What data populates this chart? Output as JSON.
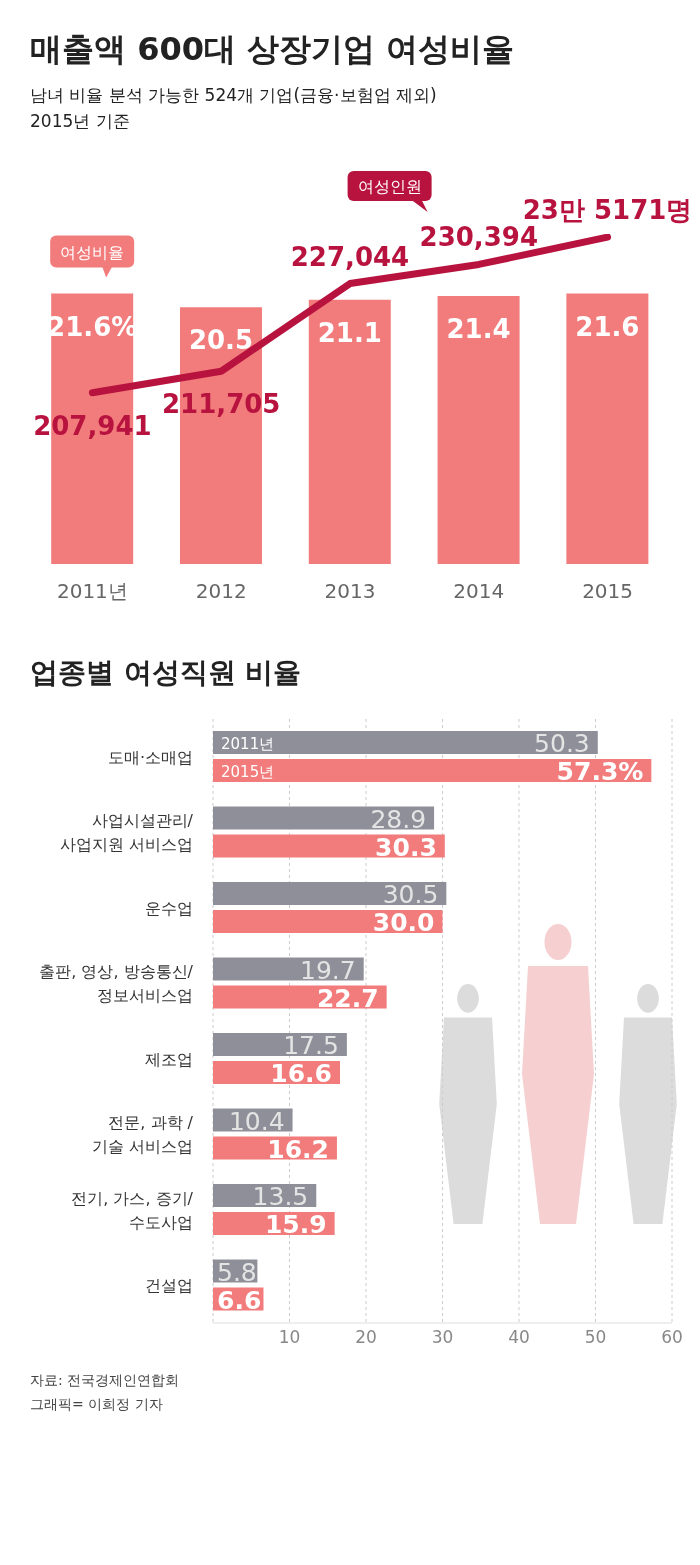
{
  "chart_data": [
    {
      "type": "bar",
      "title": "매출액 600대 상장기업 여성비율",
      "subtitle": "남녀 비율 분석 가능한 524개 기업(금융·보험업 제외)\n2015년 기준",
      "categories": [
        "2011년",
        "2012",
        "2013",
        "2014",
        "2015"
      ],
      "tick_labels": "x",
      "marker": "none",
      "series": [
        {
          "name": "여성비율",
          "type": "bar",
          "color": "#f27b7b",
          "values": [
            21.6,
            20.5,
            21.1,
            21.4,
            21.6
          ],
          "value_labels": [
            "21.6%",
            "20.5",
            "21.1",
            "21.4",
            "21.6"
          ]
        },
        {
          "name": "여성인원",
          "type": "line",
          "axis": "y2",
          "color": "#b8133f",
          "values": [
            207941,
            211705,
            227044,
            230394,
            235171
          ],
          "value_labels": [
            "207,941",
            "211,705",
            "227,044",
            "230,394",
            null
          ]
        }
      ],
      "annotations": [
        "23만 5171명"
      ]
    },
    {
      "type": "bar",
      "orientation": "horizontal",
      "title": "업종별 여성직원 비율",
      "categories": [
        "도매·소매업",
        "사업시설관리/\n사업지원 서비스업",
        "운수업",
        "출판, 영상, 방송통신/\n정보서비스업",
        "제조업",
        "전문, 과학 /\n기술 서비스업",
        "전기, 가스, 증기/\n수도사업",
        "건설업"
      ],
      "xlim": [
        0,
        60
      ],
      "xticks": [
        10,
        20,
        30,
        40,
        50,
        60
      ],
      "grid": "x",
      "series": [
        {
          "name": "2011년",
          "color": "#8f8f99",
          "values": [
            50.3,
            28.9,
            30.5,
            19.7,
            17.5,
            10.4,
            13.5,
            5.8
          ],
          "value_labels": [
            "50.3",
            "28.9",
            "30.5",
            "19.7",
            "17.5",
            "10.4",
            "13.5",
            "5.8"
          ]
        },
        {
          "name": "2015년",
          "color": "#f27b7b",
          "values": [
            57.3,
            30.3,
            30.0,
            22.7,
            16.6,
            16.2,
            15.9,
            6.6
          ],
          "value_labels": [
            "57.3%",
            "30.3",
            "30.0",
            "22.7",
            "16.6",
            "16.2",
            "15.9",
            "6.6"
          ]
        }
      ],
      "annotations": [
        "자료: 전국경제인연합회",
        "그래픽= 이희정 기자"
      ]
    }
  ]
}
